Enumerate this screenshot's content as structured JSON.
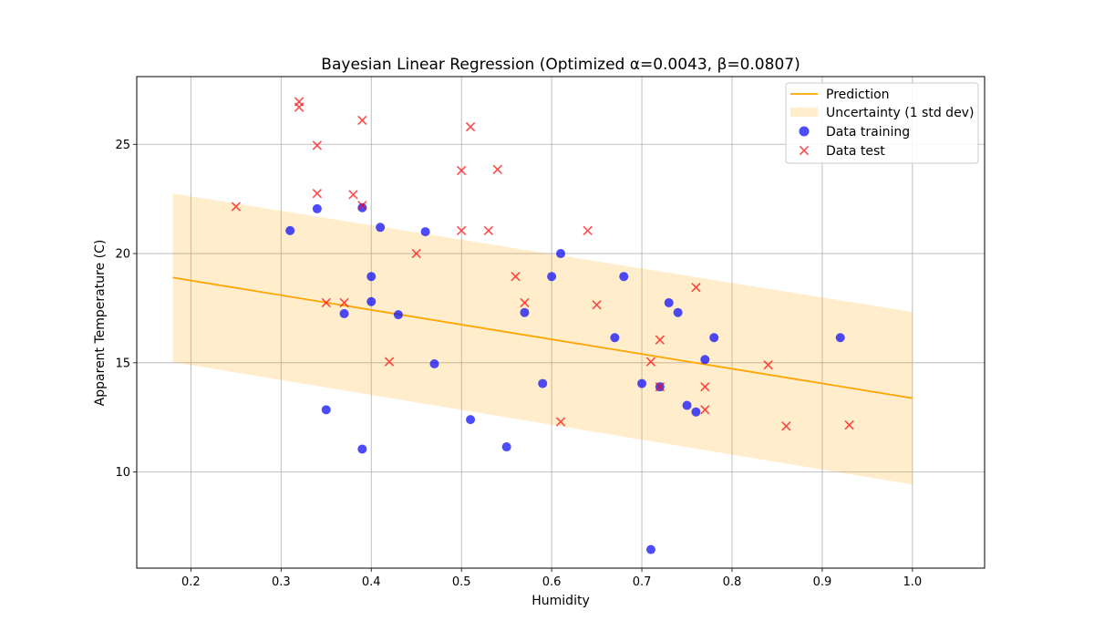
{
  "chart_data": {
    "type": "scatter",
    "title": "Bayesian Linear Regression (Optimized α=0.0043, β=0.0807)",
    "xlabel": "Humidity",
    "ylabel": "Apparent Temperature (C)",
    "xlim": [
      0.14,
      1.08
    ],
    "ylim": [
      5.6,
      28.1
    ],
    "xticks": [
      0.2,
      0.3,
      0.4,
      0.5,
      0.6,
      0.7,
      0.8,
      0.9,
      1.0
    ],
    "xtick_labels": [
      "0.2",
      "0.3",
      "0.4",
      "0.5",
      "0.6",
      "0.7",
      "0.8",
      "0.9",
      "1.0"
    ],
    "yticks": [
      10,
      15,
      20,
      25
    ],
    "ytick_labels": [
      "10",
      "15",
      "20",
      "25"
    ],
    "grid": true,
    "legend_position": "top-right",
    "prediction": {
      "name": "Prediction",
      "color": "#ffa500",
      "x": [
        0.18,
        1.0
      ],
      "y": [
        18.9,
        13.38
      ]
    },
    "uncertainty": {
      "name": "Uncertainty (1 std dev)",
      "color": "#ffa500",
      "x": [
        0.18,
        1.0
      ],
      "upper": [
        22.75,
        17.33
      ],
      "lower": [
        15.03,
        9.43
      ]
    },
    "series": [
      {
        "name": "Data training",
        "marker": "circle",
        "color": "#0000ff",
        "points": [
          [
            0.31,
            21.05
          ],
          [
            0.34,
            22.05
          ],
          [
            0.35,
            12.85
          ],
          [
            0.37,
            17.25
          ],
          [
            0.39,
            22.1
          ],
          [
            0.39,
            11.05
          ],
          [
            0.4,
            18.95
          ],
          [
            0.4,
            17.8
          ],
          [
            0.41,
            21.2
          ],
          [
            0.43,
            17.2
          ],
          [
            0.46,
            21.0
          ],
          [
            0.47,
            14.95
          ],
          [
            0.51,
            12.4
          ],
          [
            0.55,
            11.15
          ],
          [
            0.57,
            17.3
          ],
          [
            0.59,
            14.05
          ],
          [
            0.6,
            18.95
          ],
          [
            0.61,
            20.0
          ],
          [
            0.67,
            16.15
          ],
          [
            0.68,
            18.95
          ],
          [
            0.7,
            14.05
          ],
          [
            0.71,
            6.45
          ],
          [
            0.72,
            13.9
          ],
          [
            0.73,
            17.75
          ],
          [
            0.74,
            17.3
          ],
          [
            0.75,
            13.05
          ],
          [
            0.76,
            12.75
          ],
          [
            0.77,
            15.15
          ],
          [
            0.78,
            16.15
          ],
          [
            0.92,
            16.15
          ]
        ]
      },
      {
        "name": "Data test",
        "marker": "x",
        "color": "#ff0000",
        "points": [
          [
            0.25,
            22.15
          ],
          [
            0.32,
            26.95
          ],
          [
            0.32,
            26.7
          ],
          [
            0.34,
            24.95
          ],
          [
            0.34,
            22.75
          ],
          [
            0.35,
            17.75
          ],
          [
            0.37,
            17.75
          ],
          [
            0.38,
            22.7
          ],
          [
            0.39,
            26.1
          ],
          [
            0.39,
            22.2
          ],
          [
            0.42,
            15.05
          ],
          [
            0.45,
            20.0
          ],
          [
            0.5,
            23.8
          ],
          [
            0.5,
            21.05
          ],
          [
            0.51,
            25.8
          ],
          [
            0.53,
            21.05
          ],
          [
            0.54,
            23.85
          ],
          [
            0.56,
            18.95
          ],
          [
            0.57,
            17.75
          ],
          [
            0.61,
            12.3
          ],
          [
            0.64,
            21.05
          ],
          [
            0.65,
            17.65
          ],
          [
            0.71,
            15.05
          ],
          [
            0.72,
            16.05
          ],
          [
            0.72,
            13.9
          ],
          [
            0.76,
            18.45
          ],
          [
            0.77,
            13.9
          ],
          [
            0.77,
            12.85
          ],
          [
            0.84,
            14.9
          ],
          [
            0.86,
            12.1
          ],
          [
            0.93,
            12.15
          ]
        ]
      }
    ]
  }
}
